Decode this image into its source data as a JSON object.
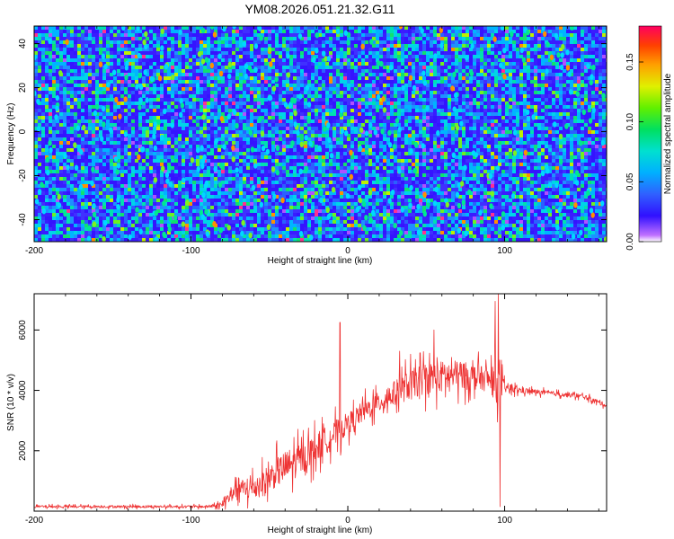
{
  "title": "YM08.2026.051.21.32.G11",
  "chart_data": [
    {
      "type": "heatmap",
      "title": "YM08.2026.051.21.32.G11",
      "xlabel": "Height of straight line (km)",
      "ylabel": "Frequency (Hz)",
      "xlim": [
        -200,
        165
      ],
      "ylim": [
        -50,
        48
      ],
      "xticks": [
        -200,
        -100,
        0,
        100
      ],
      "xtick_labels": [
        "-200",
        "-100",
        "0",
        "100"
      ],
      "yticks": [
        -40,
        -20,
        0,
        20,
        40
      ],
      "ytick_labels": [
        "-40",
        "-20",
        "0",
        "20",
        "40"
      ],
      "description_values": "noise-like normalized spectral amplitude, mostly 0.02-0.06, scattered peaks up to ~0.17",
      "colorbar": {
        "label": "Normalized spectral amplitude",
        "range": [
          0.0,
          0.18
        ],
        "ticks": [
          0.0,
          0.05,
          0.1,
          0.15
        ],
        "tick_labels": [
          "0.00",
          "0.05",
          "0.10",
          "0.15"
        ]
      }
    },
    {
      "type": "line",
      "xlabel": "Height of straight line (km)",
      "ylabel": "SNR (10 * v/v)",
      "xlim": [
        -200,
        165
      ],
      "ylim": [
        0,
        7200
      ],
      "xticks": [
        -200,
        -100,
        0,
        100
      ],
      "xtick_labels": [
        "-200",
        "-100",
        "0",
        "100"
      ],
      "yticks": [
        2000,
        4000,
        6000
      ],
      "ytick_labels": [
        "2000",
        "4000",
        "6000"
      ],
      "series": [
        {
          "name": "SNR",
          "color": "#ee3333",
          "x": [
            -200,
            -160,
            -120,
            -90,
            -80,
            -75,
            -72,
            -65,
            -55,
            -45,
            -38,
            -30,
            -20,
            -10,
            -5,
            0,
            10,
            20,
            30,
            40,
            50,
            60,
            70,
            80,
            90,
            95,
            98,
            100,
            110,
            120,
            130,
            140,
            150,
            165
          ],
          "y": [
            150,
            150,
            150,
            150,
            200,
            500,
            800,
            700,
            900,
            1300,
            1500,
            1700,
            2100,
            2500,
            2700,
            2900,
            3300,
            3600,
            3900,
            4200,
            4400,
            4450,
            4500,
            4450,
            4350,
            4200,
            4100,
            4100,
            4000,
            3950,
            3900,
            3850,
            3800,
            3500
          ],
          "noise": [
            60,
            60,
            60,
            60,
            150,
            400,
            500,
            500,
            600,
            700,
            800,
            700,
            700,
            600,
            600,
            500,
            500,
            500,
            600,
            700,
            750,
            750,
            700,
            600,
            550,
            900,
            700,
            250,
            150,
            120,
            110,
            110,
            110,
            100
          ]
        }
      ],
      "spikes": [
        {
          "x": -5,
          "y": 6250
        },
        {
          "x": 33,
          "y": 5300
        },
        {
          "x": 55,
          "y": 6000
        },
        {
          "x": 94,
          "y": 6950
        },
        {
          "x": 96,
          "y": 7200
        },
        {
          "x": 97,
          "y": 150
        }
      ]
    }
  ]
}
